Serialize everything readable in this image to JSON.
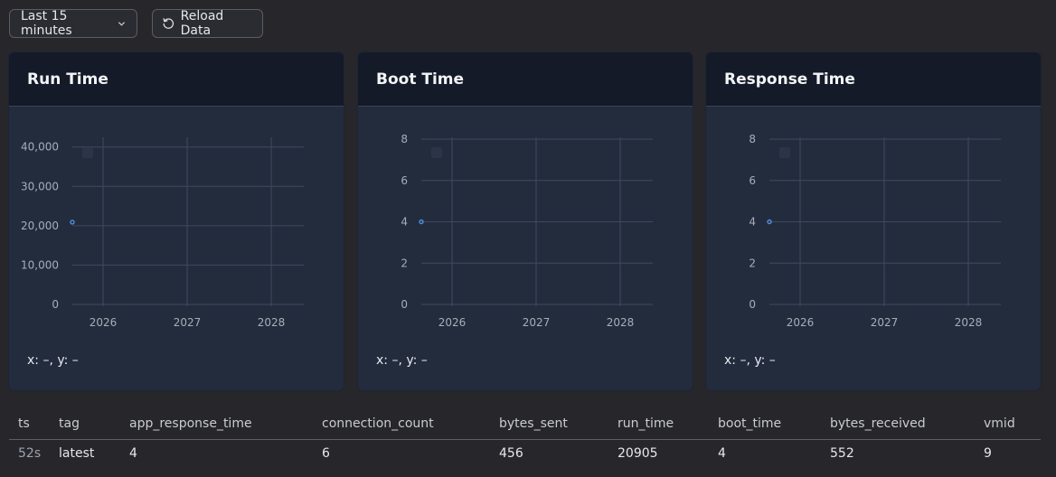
{
  "toolbar": {
    "range_label": "Last 15 minutes",
    "reload_label": "Reload Data"
  },
  "panels": [
    {
      "title": "Run Time",
      "readout": "x: –, y: –"
    },
    {
      "title": "Boot Time",
      "readout": "x: –, y: –"
    },
    {
      "title": "Response Time",
      "readout": "x: –, y: –"
    }
  ],
  "chart_data": [
    {
      "type": "scatter",
      "title": "Run Time",
      "x_tick_labels": [
        "2026",
        "2027",
        "2028"
      ],
      "y_tick_labels": [
        "0",
        "10,000",
        "20,000",
        "30,000",
        "40,000"
      ],
      "ylim": [
        0,
        42000
      ],
      "points": [
        {
          "x": "2025",
          "y": 20905
        }
      ],
      "point_color": "#4f8fe0",
      "grid": true
    },
    {
      "type": "scatter",
      "title": "Boot Time",
      "x_tick_labels": [
        "2026",
        "2027",
        "2028"
      ],
      "y_tick_labels": [
        "0",
        "2",
        "4",
        "6",
        "8"
      ],
      "ylim": [
        0,
        8
      ],
      "points": [
        {
          "x": "2025",
          "y": 4
        }
      ],
      "point_color": "#4f8fe0",
      "grid": true
    },
    {
      "type": "scatter",
      "title": "Response Time",
      "x_tick_labels": [
        "2026",
        "2027",
        "2028"
      ],
      "y_tick_labels": [
        "0",
        "2",
        "4",
        "6",
        "8"
      ],
      "ylim": [
        0,
        8
      ],
      "points": [
        {
          "x": "2025",
          "y": 4
        }
      ],
      "point_color": "#4f8fe0",
      "grid": true
    }
  ],
  "table": {
    "headers": [
      "ts",
      "tag",
      "app_response_time",
      "connection_count",
      "bytes_sent",
      "run_time",
      "boot_time",
      "bytes_received",
      "vmid"
    ],
    "rows": [
      [
        "52s",
        "latest",
        "4",
        "6",
        "456",
        "20905",
        "4",
        "552",
        "9"
      ]
    ]
  }
}
